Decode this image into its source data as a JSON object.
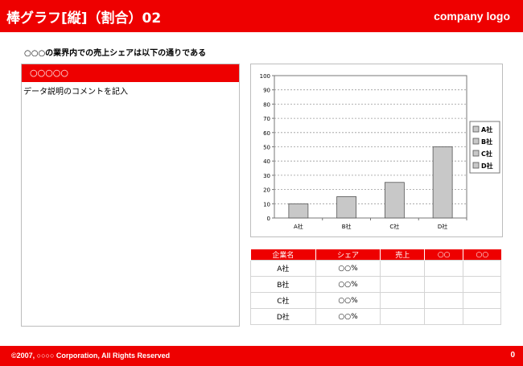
{
  "header": {
    "title": "棒グラフ[縦]（割合）02",
    "logo": "company logo"
  },
  "subtitle": "○○○の業界内での売上シェアは以下の通りである",
  "left_panel": {
    "heading": "○○○○○",
    "description": "データ説明のコメントを記入"
  },
  "colors": {
    "brand_red": "#ee0000",
    "bar_fill": "#c8c8c8",
    "bar_stroke": "#555555"
  },
  "chart_data": {
    "type": "bar",
    "categories": [
      "A社",
      "B社",
      "C社",
      "D社"
    ],
    "values": [
      10,
      15,
      25,
      50
    ],
    "ylim": [
      0,
      100
    ],
    "yticks": [
      "0",
      "10",
      "20",
      "30",
      "40",
      "50",
      "60",
      "70",
      "80",
      "90",
      "100"
    ],
    "grid": true,
    "legend": {
      "placement": "right",
      "entries": [
        "A社",
        "B社",
        "C社",
        "D社"
      ]
    }
  },
  "table": {
    "headers": [
      "企業名",
      "シェア",
      "売上",
      "○○",
      "○○"
    ],
    "rows": [
      [
        "A社",
        "○○%",
        "",
        "",
        ""
      ],
      [
        "B社",
        "○○%",
        "",
        "",
        ""
      ],
      [
        "C社",
        "○○%",
        "",
        "",
        ""
      ],
      [
        "D社",
        "○○%",
        "",
        "",
        ""
      ]
    ]
  },
  "footer": {
    "copyright": "©2007, ○○○○ Corporation, All Rights Reserved",
    "page_number": "0"
  }
}
